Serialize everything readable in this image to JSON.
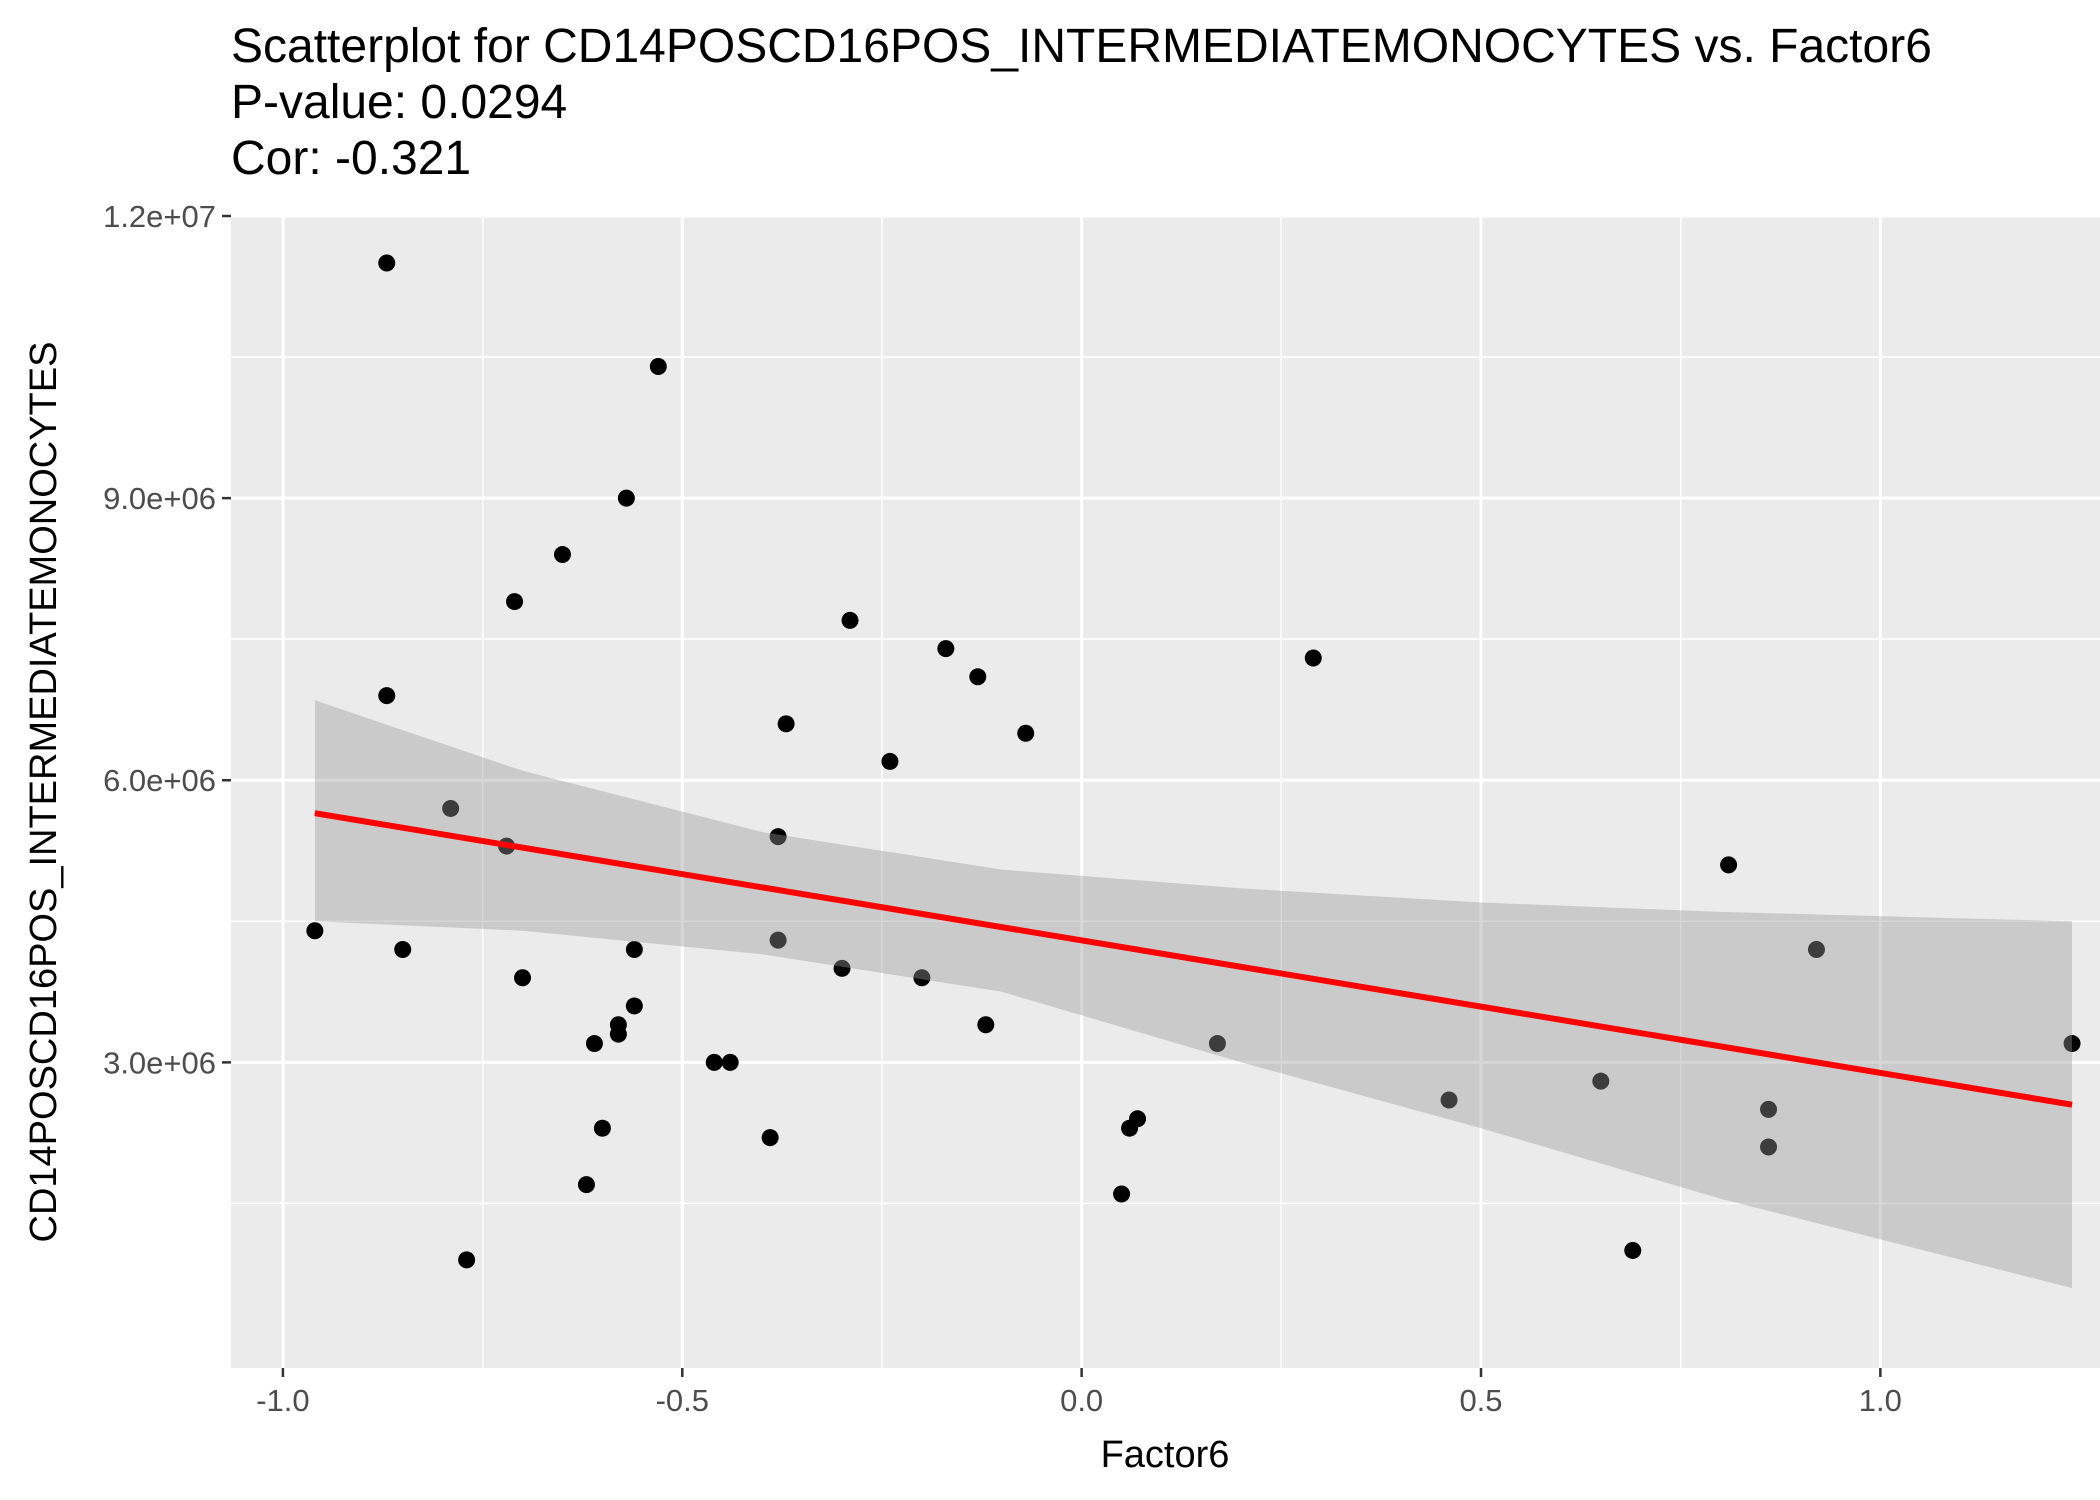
{
  "chart_data": {
    "type": "scatter",
    "title_lines": [
      "Scatterplot for CD14POSCD16POS_INTERMEDIATEMONOCYTES vs. Factor6",
      "P-value: 0.0294",
      "Cor: -0.321"
    ],
    "xlabel": "Factor6",
    "ylabel": "CD14POSCD16POS_INTERMEDIATEMONOCYTES",
    "xlim": [
      -1.065,
      1.275
    ],
    "ylim": [
      -250000,
      12000000
    ],
    "x_ticks": [
      -1.0,
      -0.5,
      0.0,
      0.5,
      1.0
    ],
    "x_tick_labels": [
      "-1.0",
      "-0.5",
      "0.0",
      "0.5",
      "1.0"
    ],
    "y_ticks": [
      3000000,
      6000000,
      9000000,
      12000000
    ],
    "y_tick_labels": [
      "3.0e+06",
      "6.0e+06",
      "9.0e+06",
      "1.2e+07"
    ],
    "grid": true,
    "points": [
      {
        "x": -0.87,
        "y": 11500000
      },
      {
        "x": -0.53,
        "y": 10400000
      },
      {
        "x": -0.57,
        "y": 9000000
      },
      {
        "x": -0.65,
        "y": 8400000
      },
      {
        "x": -0.71,
        "y": 7900000
      },
      {
        "x": -0.29,
        "y": 7700000
      },
      {
        "x": -0.17,
        "y": 7400000
      },
      {
        "x": -0.13,
        "y": 7100000
      },
      {
        "x": 0.29,
        "y": 7300000
      },
      {
        "x": -0.87,
        "y": 6900000
      },
      {
        "x": -0.37,
        "y": 6600000
      },
      {
        "x": -0.07,
        "y": 6500000
      },
      {
        "x": -0.24,
        "y": 6200000
      },
      {
        "x": -0.79,
        "y": 5700000
      },
      {
        "x": -0.72,
        "y": 5300000
      },
      {
        "x": -0.38,
        "y": 5400000
      },
      {
        "x": 0.81,
        "y": 5100000
      },
      {
        "x": -0.96,
        "y": 4400000
      },
      {
        "x": -0.85,
        "y": 4200000
      },
      {
        "x": -0.56,
        "y": 4200000
      },
      {
        "x": -0.38,
        "y": 4300000
      },
      {
        "x": 0.92,
        "y": 4200000
      },
      {
        "x": -0.3,
        "y": 4000000
      },
      {
        "x": -0.7,
        "y": 3900000
      },
      {
        "x": -0.2,
        "y": 3900000
      },
      {
        "x": -0.56,
        "y": 3600000
      },
      {
        "x": -0.58,
        "y": 3400000
      },
      {
        "x": -0.12,
        "y": 3400000
      },
      {
        "x": -0.58,
        "y": 3300000
      },
      {
        "x": -0.61,
        "y": 3200000
      },
      {
        "x": 0.17,
        "y": 3200000
      },
      {
        "x": 1.24,
        "y": 3200000
      },
      {
        "x": -0.46,
        "y": 3000000
      },
      {
        "x": -0.44,
        "y": 3000000
      },
      {
        "x": 0.65,
        "y": 2800000
      },
      {
        "x": 0.46,
        "y": 2600000
      },
      {
        "x": 0.86,
        "y": 2500000
      },
      {
        "x": 0.07,
        "y": 2400000
      },
      {
        "x": -0.6,
        "y": 2300000
      },
      {
        "x": 0.06,
        "y": 2300000
      },
      {
        "x": -0.39,
        "y": 2200000
      },
      {
        "x": 0.86,
        "y": 2100000
      },
      {
        "x": -0.62,
        "y": 1700000
      },
      {
        "x": 0.05,
        "y": 1600000
      },
      {
        "x": 0.69,
        "y": 1000000
      },
      {
        "x": -0.77,
        "y": 900000
      }
    ],
    "fit_line": {
      "x": [
        -0.96,
        1.24
      ],
      "y": [
        5650000,
        2550000
      ],
      "color": "#ff0000"
    },
    "confidence_band": {
      "x": [
        -0.96,
        -0.7,
        -0.4,
        -0.1,
        0.2,
        0.5,
        0.8,
        1.24
      ],
      "upper": [
        6850000,
        6100000,
        5450000,
        5050000,
        4850000,
        4700000,
        4600000,
        4500000
      ],
      "lower": [
        4500000,
        4400000,
        4150000,
        3750000,
        3000000,
        2300000,
        1550000,
        600000
      ],
      "color": "#999999"
    },
    "colors": {
      "point": "#000000",
      "panel_background": "#ebebeb",
      "grid": "#ffffff"
    }
  }
}
